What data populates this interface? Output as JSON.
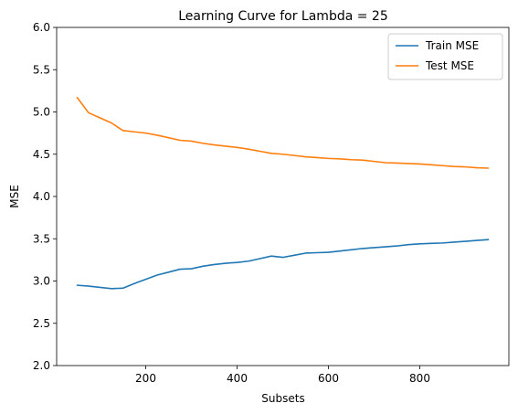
{
  "chart_data": {
    "type": "line",
    "title": "Learning Curve for Lambda = 25",
    "xlabel": "Subsets",
    "ylabel": "MSE",
    "xlim": [
      5,
      995
    ],
    "ylim": [
      2.0,
      6.0
    ],
    "xticks": [
      200,
      400,
      600,
      800
    ],
    "yticks": [
      2.0,
      2.5,
      3.0,
      3.5,
      4.0,
      4.5,
      5.0,
      5.5,
      6.0
    ],
    "grid": false,
    "legend_position": "top-right",
    "series": [
      {
        "name": "Train MSE",
        "color": "#1f77b4",
        "x": [
          50,
          75,
          100,
          125,
          150,
          175,
          200,
          225,
          250,
          275,
          300,
          325,
          350,
          375,
          400,
          425,
          450,
          475,
          500,
          525,
          550,
          575,
          600,
          625,
          650,
          675,
          700,
          725,
          750,
          775,
          800,
          825,
          850,
          875,
          900,
          925,
          950
        ],
        "y": [
          2.95,
          2.94,
          2.925,
          2.91,
          2.915,
          2.97,
          3.02,
          3.07,
          3.105,
          3.14,
          3.145,
          3.175,
          3.195,
          3.21,
          3.22,
          3.235,
          3.265,
          3.295,
          3.28,
          3.305,
          3.33,
          3.335,
          3.34,
          3.355,
          3.37,
          3.385,
          3.395,
          3.405,
          3.415,
          3.43,
          3.44,
          3.445,
          3.45,
          3.46,
          3.47,
          3.48,
          3.49
        ]
      },
      {
        "name": "Test MSE",
        "color": "#ff7f0e",
        "x": [
          50,
          75,
          100,
          125,
          150,
          175,
          200,
          225,
          250,
          275,
          300,
          325,
          350,
          375,
          400,
          425,
          450,
          475,
          500,
          525,
          550,
          575,
          600,
          625,
          650,
          675,
          700,
          725,
          750,
          775,
          800,
          825,
          850,
          875,
          900,
          925,
          950
        ],
        "y": [
          5.17,
          4.99,
          4.93,
          4.87,
          4.78,
          4.765,
          4.75,
          4.725,
          4.695,
          4.665,
          4.655,
          4.63,
          4.61,
          4.595,
          4.58,
          4.56,
          4.535,
          4.51,
          4.5,
          4.485,
          4.47,
          4.46,
          4.45,
          4.445,
          4.435,
          4.43,
          4.415,
          4.4,
          4.395,
          4.39,
          4.385,
          4.375,
          4.365,
          4.355,
          4.35,
          4.34,
          4.335
        ]
      }
    ]
  }
}
